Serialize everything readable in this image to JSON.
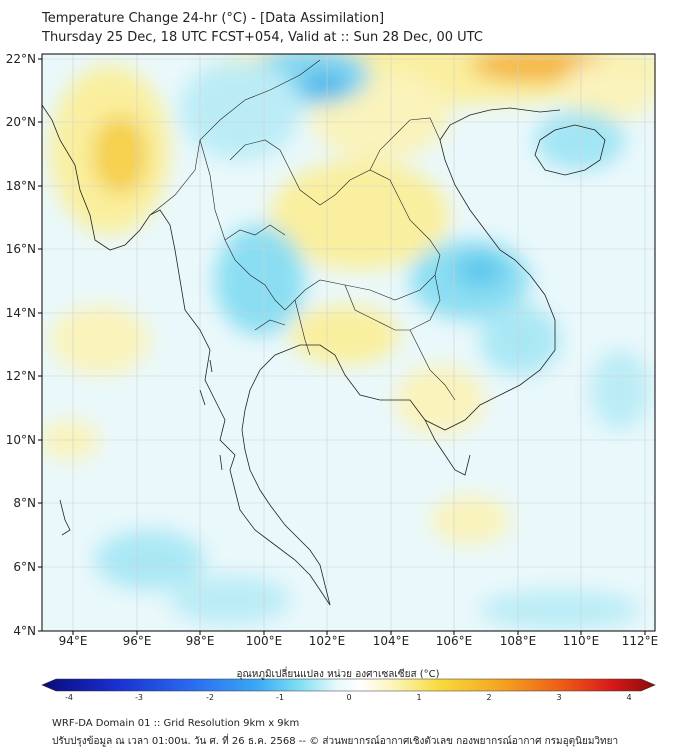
{
  "header": {
    "title": "Temperature Change 24-hr (°C) - [Data Assimilation]",
    "subtitle": "Thursday 25 Dec, 18 UTC FCST+054, Valid at :: Sun 28 Dec, 00 UTC"
  },
  "axes": {
    "lat_labels": [
      "22°N",
      "20°N",
      "18°N",
      "16°N",
      "14°N",
      "12°N",
      "10°N",
      "8°N",
      "6°N",
      "4°N"
    ],
    "lon_labels": [
      "94°E",
      "96°E",
      "98°E",
      "100°E",
      "102°E",
      "104°E",
      "106°E",
      "108°E",
      "110°E",
      "112°E"
    ]
  },
  "colorbar": {
    "title": "อุณหภูมิเปลี่ยนแปลง หน่วย องศาเซลเซียส (°C)",
    "ticks": [
      "-4",
      "-3",
      "-2",
      "-1",
      "0",
      "1",
      "2",
      "3",
      "4"
    ],
    "colors": [
      "#0a0a7a",
      "#1a2fd0",
      "#2a6ef0",
      "#3aa8f5",
      "#5fd3f0",
      "#a8ecf5",
      "#e6f8fb",
      "#ffffff",
      "#fbf7d6",
      "#fbf08e",
      "#f7da3a",
      "#f4a322",
      "#ee5b16",
      "#d81818",
      "#8a0b0b"
    ]
  },
  "footer": {
    "line1": "WRF-DA Domain 01 :: Grid Resolution 9km x 9km",
    "line2": "ปรับปรุงข้อมูล ณ เวลา 01:00น. วัน ศ. ที่ 26 ธ.ค. 2568 -- © ส่วนพยากรณ์อากาศเชิงตัวเลข กองพยากรณ์อากาศ กรมอุตุนิยมวิทยา"
  }
}
